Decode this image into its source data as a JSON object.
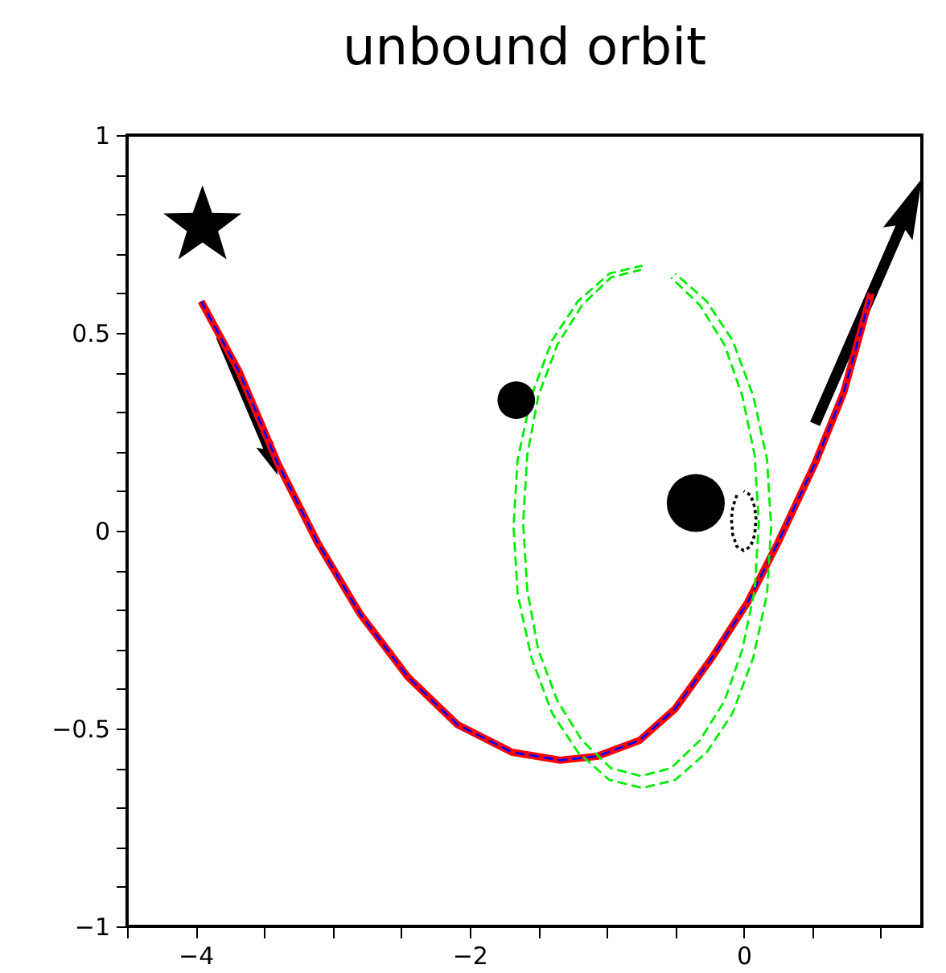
{
  "chart_data": {
    "type": "line",
    "title": "unbound orbit",
    "xlim": [
      -4.5,
      1.3
    ],
    "ylim": [
      -1,
      1
    ],
    "xticks": [
      {
        "value": -4.5,
        "label": null
      },
      -4,
      {
        "value": -3.5,
        "label": null
      },
      {
        "value": -3,
        "label": null
      },
      {
        "value": -2.5,
        "label": null
      },
      -2,
      {
        "value": -1.5,
        "label": null
      },
      {
        "value": -1,
        "label": null
      },
      {
        "value": -0.5,
        "label": null
      },
      0,
      {
        "value": 0.5,
        "label": null
      },
      {
        "value": 1,
        "label": null
      }
    ],
    "yticks": [
      -1,
      {
        "value": -0.9,
        "label": null
      },
      {
        "value": -0.8,
        "label": null
      },
      {
        "value": -0.7,
        "label": null
      },
      {
        "value": -0.6,
        "label": null
      },
      -0.5,
      {
        "value": -0.4,
        "label": null
      },
      {
        "value": -0.3,
        "label": null
      },
      {
        "value": -0.2,
        "label": null
      },
      {
        "value": -0.1,
        "label": null
      },
      0,
      {
        "value": 0.1,
        "label": null
      },
      {
        "value": 0.2,
        "label": null
      },
      {
        "value": 0.3,
        "label": null
      },
      {
        "value": 0.4,
        "label": null
      },
      0.5,
      {
        "value": 0.6,
        "label": null
      },
      {
        "value": 0.7,
        "label": null
      },
      {
        "value": 0.8,
        "label": null
      },
      {
        "value": 0.9,
        "label": null
      },
      1
    ],
    "grid": false,
    "series": [
      {
        "color": "#ff0000",
        "line_style": "solid",
        "x": [
          -3.96,
          -3.68,
          -3.4,
          -3.11,
          -2.8,
          -2.45,
          -2.09,
          -1.69,
          -1.34,
          -1.07,
          -0.76,
          -0.5,
          -0.23,
          0.03,
          0.25,
          0.52,
          0.73,
          0.93
        ],
        "values": [
          0.58,
          0.4,
          0.17,
          -0.03,
          -0.21,
          -0.37,
          -0.49,
          -0.56,
          -0.58,
          -0.57,
          -0.53,
          -0.45,
          -0.32,
          -0.18,
          -0.03,
          0.17,
          0.35,
          0.6
        ]
      },
      {
        "color": "#0000ff",
        "line_style": "dashed",
        "x": [
          -3.96,
          -3.68,
          -3.4,
          -3.11,
          -2.8,
          -2.45,
          -2.09,
          -1.69,
          -1.34,
          -1.07,
          -0.76,
          -0.5,
          -0.23,
          0.03,
          0.25,
          0.52,
          0.73,
          0.93
        ],
        "values": [
          0.58,
          0.4,
          0.17,
          -0.03,
          -0.21,
          -0.37,
          -0.49,
          -0.56,
          -0.58,
          -0.57,
          -0.53,
          -0.45,
          -0.32,
          -0.18,
          -0.03,
          0.17,
          0.35,
          0.6
        ]
      },
      {
        "color": "#00ee00",
        "line_style": "dashed",
        "x": [
          -0.74,
          -0.98,
          -1.21,
          -1.4,
          -1.55,
          -1.65,
          -1.68,
          -1.65,
          -1.55,
          -1.4,
          -1.21,
          -0.98,
          -0.74,
          -0.5,
          -0.27,
          -0.08,
          0.07,
          0.17,
          0.2,
          0.17,
          0.07,
          -0.08,
          -0.27,
          -0.5
        ],
        "values": [
          0.67,
          0.65,
          0.58,
          0.48,
          0.34,
          0.18,
          0.01,
          -0.16,
          -0.32,
          -0.46,
          -0.56,
          -0.63,
          -0.65,
          -0.63,
          -0.56,
          -0.46,
          -0.32,
          -0.16,
          0.01,
          0.18,
          0.34,
          0.48,
          0.58,
          0.65
        ]
      },
      {
        "color": "#00ee00",
        "line_style": "dashed",
        "x": [
          -0.75,
          -0.97,
          -1.18,
          -1.36,
          -1.5,
          -1.58,
          -1.61,
          -1.58,
          -1.5,
          -1.36,
          -1.18,
          -0.97,
          -0.75,
          -0.53,
          -0.32,
          -0.14,
          -0.01,
          0.08,
          0.11,
          0.08,
          -0.01,
          -0.14,
          -0.32,
          -0.53
        ],
        "values": [
          0.66,
          0.64,
          0.57,
          0.47,
          0.34,
          0.19,
          0.02,
          -0.15,
          -0.3,
          -0.43,
          -0.53,
          -0.6,
          -0.62,
          -0.6,
          -0.53,
          -0.43,
          -0.3,
          -0.15,
          0.02,
          0.19,
          0.34,
          0.47,
          0.57,
          0.64
        ]
      },
      {
        "color": "#000000",
        "line_style": "dotted",
        "x": [
          -0.05,
          -0.08,
          -0.09,
          -0.08,
          -0.05,
          0.0,
          0.05,
          0.08,
          0.09,
          0.08,
          0.05,
          0.0
        ],
        "values": [
          0.09,
          0.06,
          0.03,
          -0.01,
          -0.04,
          -0.05,
          -0.04,
          -0.01,
          0.03,
          0.06,
          0.09,
          0.1
        ]
      },
      {
        "type": "scatter",
        "color": "#000000",
        "marker": "star",
        "x": [
          -3.95
        ],
        "values": [
          0.77
        ]
      },
      {
        "type": "bubble",
        "color": "#000000",
        "marker": "circle",
        "x": [
          -1.66,
          -0.35
        ],
        "values": [
          0.33,
          0.07
        ],
        "sizes": [
          0.42,
          1
        ]
      }
    ]
  }
}
